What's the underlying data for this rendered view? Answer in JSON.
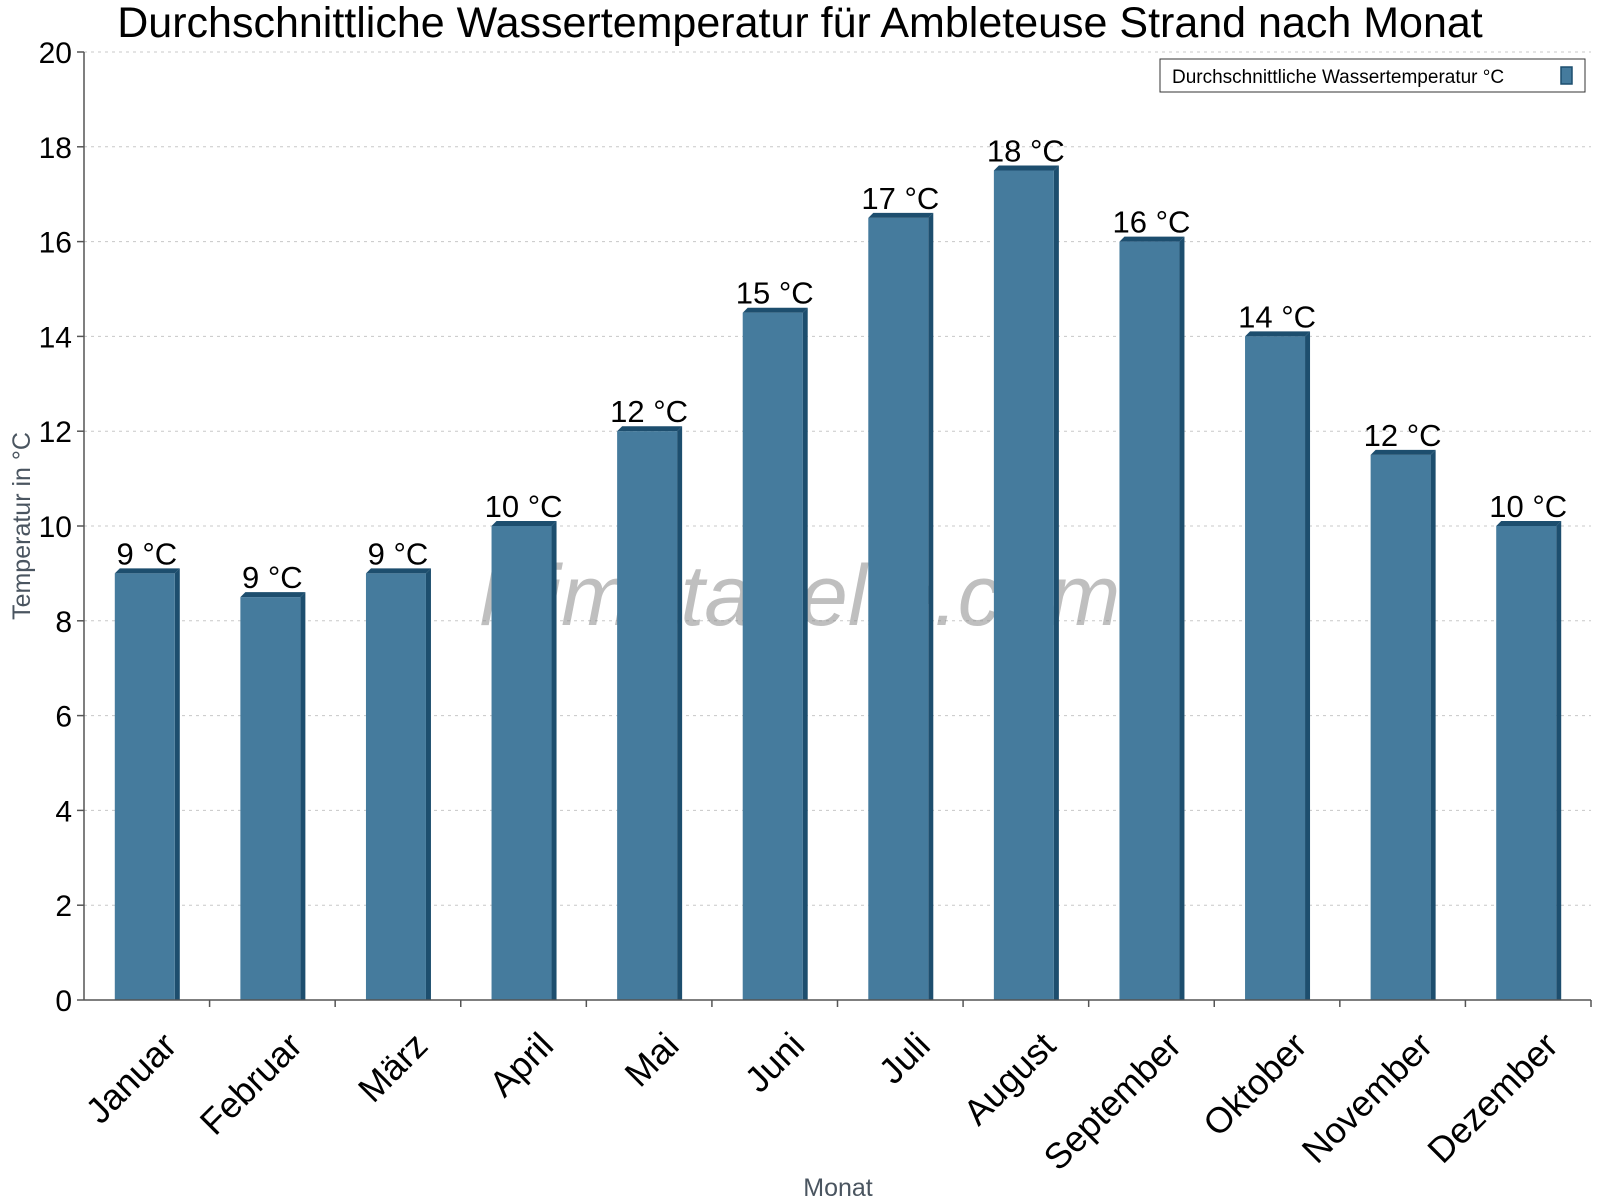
{
  "chart_data": {
    "type": "bar",
    "title": "Durchschnittliche Wassertemperatur für Ambleteuse Strand nach Monat",
    "xlabel": "Monat",
    "ylabel": "Temperatur in °C",
    "ylim": [
      0,
      20
    ],
    "yticks": [
      0,
      2,
      4,
      6,
      8,
      10,
      12,
      14,
      16,
      18,
      20
    ],
    "grid": true,
    "legend_position": "top-right",
    "categories": [
      "Januar",
      "Februar",
      "März",
      "April",
      "Mai",
      "Juni",
      "Juli",
      "August",
      "September",
      "Oktober",
      "November",
      "Dezember"
    ],
    "series": [
      {
        "name": "Durchschnittliche Wassertemperatur °C",
        "values": [
          9.0,
          8.5,
          9.0,
          10.0,
          12.0,
          14.5,
          16.5,
          17.5,
          16.0,
          14.0,
          11.5,
          10.0
        ],
        "data_labels": [
          "9 °C",
          "9 °C",
          "9 °C",
          "10 °C",
          "12 °C",
          "15 °C",
          "17 °C",
          "18 °C",
          "16 °C",
          "14 °C",
          "12 °C",
          "10 °C"
        ],
        "color": "#457b9d",
        "edge_color": "#1d4e6e"
      }
    ]
  },
  "watermark": "klimatabelle.com"
}
